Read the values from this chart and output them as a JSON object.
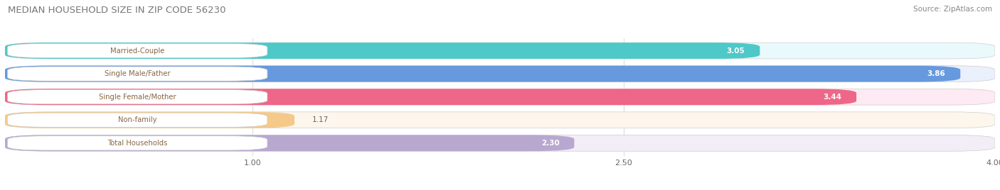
{
  "title": "MEDIAN HOUSEHOLD SIZE IN ZIP CODE 56230",
  "source": "Source: ZipAtlas.com",
  "categories": [
    "Married-Couple",
    "Single Male/Father",
    "Single Female/Mother",
    "Non-family",
    "Total Households"
  ],
  "values": [
    3.05,
    3.86,
    3.44,
    1.17,
    2.3
  ],
  "bar_colors": [
    "#4ec8c8",
    "#6699dd",
    "#ee6688",
    "#f5c98a",
    "#b8a8d0"
  ],
  "bar_bg_colors": [
    "#eafafc",
    "#eaf0fc",
    "#fdeaf2",
    "#fdf6ec",
    "#f2eef8"
  ],
  "xlim": [
    0,
    4.0
  ],
  "xticks": [
    1.0,
    2.5,
    4.0
  ],
  "label_color": "#886644",
  "title_color": "#777777",
  "source_color": "#888888",
  "grid_color": "#dddddd",
  "bg_color": "#ffffff"
}
